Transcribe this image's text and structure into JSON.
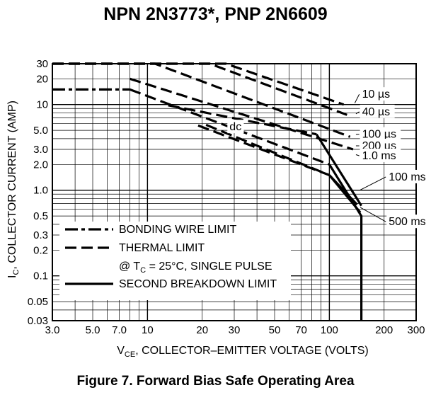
{
  "title": "NPN 2N3773*, PNP 2N6609",
  "caption": "Figure 7. Forward Bias Safe Operating Area",
  "chart_data": {
    "type": "line",
    "xscale": "log",
    "yscale": "log",
    "xlim": [
      3,
      300
    ],
    "ylim": [
      0.03,
      30
    ],
    "grid": true,
    "xlabel": "V_CE, COLLECTOR–EMITTER VOLTAGE (VOLTS)",
    "xlabel_parts": {
      "main": "V",
      "sub": "CE",
      "rest": ", COLLECTOR–EMITTER VOLTAGE (VOLTS)"
    },
    "ylabel": "I_C, COLLECTOR CURRENT (AMP)",
    "ylabel_parts": {
      "main": "I",
      "sub": "C",
      "rest": ", COLLECTOR CURRENT (AMP)"
    },
    "xticks": [
      {
        "value": 3,
        "label": "3.0"
      },
      {
        "value": 5,
        "label": "5.0"
      },
      {
        "value": 7,
        "label": "7.0"
      },
      {
        "value": 10,
        "label": "10"
      },
      {
        "value": 20,
        "label": "20"
      },
      {
        "value": 30,
        "label": "30"
      },
      {
        "value": 50,
        "label": "50"
      },
      {
        "value": 70,
        "label": "70"
      },
      {
        "value": 100,
        "label": "100"
      },
      {
        "value": 200,
        "label": "200"
      },
      {
        "value": 300,
        "label": "300"
      }
    ],
    "yticks": [
      {
        "value": 30,
        "label": "30"
      },
      {
        "value": 20,
        "label": "20"
      },
      {
        "value": 10,
        "label": "10"
      },
      {
        "value": 5,
        "label": "5.0"
      },
      {
        "value": 3,
        "label": "3.0"
      },
      {
        "value": 2,
        "label": "2.0"
      },
      {
        "value": 1,
        "label": "1.0"
      },
      {
        "value": 0.5,
        "label": "0.5"
      },
      {
        "value": 0.3,
        "label": "0.3"
      },
      {
        "value": 0.2,
        "label": "0.2"
      },
      {
        "value": 0.1,
        "label": "0.1"
      },
      {
        "value": 0.05,
        "label": "0.05"
      },
      {
        "value": 0.03,
        "label": "0.03"
      }
    ],
    "series": [
      {
        "label": "10 µs",
        "style": "thermal",
        "points": [
          [
            3,
            30
          ],
          [
            27,
            30
          ],
          [
            120,
            10
          ]
        ]
      },
      {
        "label": "40 µs",
        "style": "thermal",
        "points": [
          [
            3,
            30
          ],
          [
            22,
            30
          ],
          [
            125,
            7.6
          ]
        ]
      },
      {
        "label": "100 µs",
        "style": "thermal",
        "points": [
          [
            3,
            30
          ],
          [
            11,
            30
          ],
          [
            130,
            4.2
          ]
        ]
      },
      {
        "label": "200 µs",
        "style": "thermal",
        "points": [
          [
            8,
            20
          ],
          [
            135,
            3.0
          ]
        ]
      },
      {
        "label": "1.0 ms",
        "style": "thermal",
        "points": [
          [
            13,
            9.8
          ],
          [
            85,
            4.5
          ]
        ]
      },
      {
        "label": "1.0 ms",
        "style": "second_breakdown",
        "points": [
          [
            85,
            4.5
          ],
          [
            150,
            0.66
          ]
        ]
      },
      {
        "label": "dc",
        "style": "bonding_wire",
        "points": [
          [
            3,
            15
          ],
          [
            8,
            15
          ]
        ]
      },
      {
        "label": "dc",
        "style": "thermal",
        "points": [
          [
            8,
            15
          ],
          [
            100,
            2.0
          ]
        ]
      },
      {
        "label": "dc",
        "style": "second_breakdown",
        "points": [
          [
            100,
            2.0
          ],
          [
            150,
            0.5
          ],
          [
            150,
            0.03
          ]
        ]
      },
      {
        "label": "100 ms",
        "style": "thermal",
        "points": [
          [
            21,
            5.8
          ],
          [
            100,
            1.5
          ]
        ]
      },
      {
        "label": "100 ms",
        "style": "second_breakdown",
        "points": [
          [
            100,
            1.5
          ],
          [
            142,
            0.68
          ]
        ]
      },
      {
        "label": "500 ms",
        "style": "thermal",
        "points": [
          [
            19,
            5.7
          ],
          [
            100,
            1.5
          ]
        ]
      },
      {
        "label": "500 ms",
        "style": "second_breakdown",
        "points": [
          [
            100,
            1.5
          ],
          [
            148,
            0.55
          ]
        ]
      }
    ],
    "curve_labels": [
      {
        "text": "10 µs",
        "anchor": [
          150,
          12
        ],
        "leader_from": [
          138,
          10.4
        ]
      },
      {
        "text": "40 µs",
        "anchor": [
          150,
          7.5
        ],
        "leader_from": [
          140,
          7.8
        ]
      },
      {
        "text": "100 µs",
        "anchor": [
          150,
          4.1
        ],
        "leader_from": [
          140,
          4.5
        ]
      },
      {
        "text": "200 µs",
        "anchor": [
          150,
          3.0
        ],
        "leader_from": [
          140,
          3.3
        ]
      },
      {
        "text": "1.0 ms",
        "anchor": [
          150,
          2.3
        ],
        "leader_from": [
          140,
          2.6
        ]
      },
      {
        "text": "dc",
        "anchor": [
          28,
          5.0
        ]
      },
      {
        "text": "100 ms",
        "anchor": [
          210,
          1.3
        ],
        "leader_from": [
          147,
          1.0
        ]
      },
      {
        "text": "500 ms",
        "anchor": [
          210,
          0.39
        ],
        "leader_from": [
          148,
          0.63
        ]
      }
    ],
    "legend": {
      "placement": "bottom-left",
      "items": [
        {
          "style": "bonding_wire",
          "label": "BONDING WIRE LIMIT"
        },
        {
          "style": "thermal",
          "label": "THERMAL LIMIT"
        },
        {
          "style": "none",
          "label": "@ T_C = 25°C, SINGLE PULSE",
          "parts": {
            "pre": "@ T",
            "sub": "C",
            "post": " = 25°C, SINGLE PULSE"
          }
        },
        {
          "style": "second_breakdown",
          "label": "SECOND BREAKDOWN LIMIT"
        }
      ]
    }
  }
}
